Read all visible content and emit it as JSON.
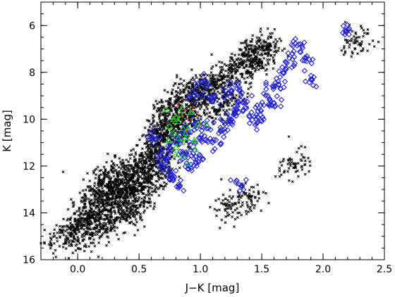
{
  "chart_data": {
    "type": "scatter",
    "title": "",
    "xlabel": "J−K [mag]",
    "ylabel": "K [mag]",
    "xlim": [
      -0.3,
      2.5
    ],
    "ylim": [
      16,
      5
    ],
    "y_inverted": true,
    "grid": false,
    "x_ticks": [
      0.0,
      0.5,
      1.0,
      1.5,
      2.0,
      2.5
    ],
    "x_tick_labels": [
      "0.0",
      "0.5",
      "1.0",
      "1.5",
      "2.0",
      "2.5"
    ],
    "y_ticks": [
      6,
      8,
      10,
      12,
      14,
      16
    ],
    "y_tick_labels": [
      "6",
      "8",
      "10",
      "12",
      "14",
      "16"
    ],
    "series": [
      {
        "marker": "x",
        "color": "#000000",
        "description_points": "dense field population; core centered near (0.3, 13.2), extending to upper right",
        "points": [
          [
            0.05,
            14.5
          ],
          [
            0.1,
            14.2
          ],
          [
            0.12,
            13.6
          ],
          [
            0.15,
            14.8
          ],
          [
            0.18,
            13.1
          ],
          [
            0.2,
            12.6
          ],
          [
            0.22,
            14.1
          ],
          [
            0.25,
            13.4
          ],
          [
            0.27,
            12.9
          ],
          [
            0.3,
            13.2
          ],
          [
            0.3,
            14.4
          ],
          [
            0.32,
            12.3
          ],
          [
            0.35,
            13.7
          ],
          [
            0.37,
            12.8
          ],
          [
            0.4,
            13.0
          ],
          [
            0.42,
            14.0
          ],
          [
            0.45,
            12.5
          ],
          [
            0.47,
            13.5
          ],
          [
            0.5,
            12.1
          ],
          [
            0.52,
            13.0
          ],
          [
            0.55,
            11.8
          ],
          [
            0.57,
            12.6
          ],
          [
            0.6,
            11.4
          ],
          [
            0.62,
            12.2
          ],
          [
            0.65,
            11.0
          ],
          [
            0.68,
            10.6
          ],
          [
            0.7,
            11.9
          ],
          [
            0.72,
            10.2
          ],
          [
            0.75,
            9.8
          ],
          [
            0.78,
            10.9
          ],
          [
            0.8,
            9.5
          ],
          [
            0.82,
            10.3
          ],
          [
            0.85,
            9.2
          ],
          [
            0.88,
            9.9
          ],
          [
            0.9,
            8.8
          ],
          [
            0.95,
            9.4
          ],
          [
            1.0,
            8.6
          ],
          [
            1.05,
            9.1
          ],
          [
            1.1,
            8.4
          ],
          [
            1.15,
            9.6
          ],
          [
            1.2,
            8.2
          ],
          [
            1.25,
            8.9
          ],
          [
            1.3,
            7.9
          ],
          [
            1.35,
            7.6
          ],
          [
            1.4,
            7.3
          ],
          [
            1.45,
            7.0
          ],
          [
            1.5,
            7.2
          ],
          [
            1.55,
            6.9
          ],
          [
            -0.1,
            15.2
          ],
          [
            -0.05,
            14.9
          ],
          [
            0.0,
            14.6
          ],
          [
            1.78,
            11.9
          ],
          [
            2.25,
            6.75
          ],
          [
            1.23,
            13.8
          ],
          [
            1.4,
            13.4
          ]
        ]
      },
      {
        "marker": "diamond",
        "color": "#2020d0",
        "points": [
          [
            0.62,
            10.8
          ],
          [
            0.68,
            11.6
          ],
          [
            0.72,
            12.0
          ],
          [
            0.75,
            11.2
          ],
          [
            0.78,
            12.4
          ],
          [
            0.8,
            11.0
          ],
          [
            0.82,
            12.8
          ],
          [
            0.85,
            11.5
          ],
          [
            0.88,
            10.6
          ],
          [
            0.9,
            12.1
          ],
          [
            0.92,
            11.3
          ],
          [
            0.95,
            10.2
          ],
          [
            0.98,
            11.8
          ],
          [
            1.0,
            10.8
          ],
          [
            1.05,
            10.4
          ],
          [
            1.1,
            11.0
          ],
          [
            1.15,
            10.6
          ],
          [
            1.2,
            10.2
          ],
          [
            1.25,
            10.0
          ],
          [
            1.3,
            9.6
          ],
          [
            1.35,
            9.3
          ],
          [
            1.4,
            9.9
          ],
          [
            1.45,
            9.5
          ],
          [
            1.5,
            10.1
          ],
          [
            1.55,
            9.0
          ],
          [
            1.6,
            8.6
          ],
          [
            1.65,
            8.2
          ],
          [
            1.7,
            7.8
          ],
          [
            1.75,
            7.2
          ],
          [
            1.8,
            6.8
          ],
          [
            1.85,
            7.5
          ],
          [
            1.9,
            8.3
          ],
          [
            1.3,
            8.7
          ],
          [
            1.22,
            8.9
          ],
          [
            1.32,
            12.8
          ],
          [
            1.6,
            9.3
          ],
          [
            2.18,
            6.2
          ],
          [
            1.1,
            9.2
          ],
          [
            0.95,
            9.0
          ],
          [
            1.05,
            8.6
          ]
        ]
      },
      {
        "marker": "triangle",
        "color": "#20d020",
        "points": [
          [
            0.72,
            9.6
          ],
          [
            0.8,
            9.9
          ],
          [
            0.85,
            9.5
          ],
          [
            0.82,
            10.1
          ],
          [
            0.75,
            10.3
          ],
          [
            0.78,
            10.6
          ],
          [
            0.88,
            10.8
          ],
          [
            0.9,
            10.4
          ],
          [
            0.85,
            11.0
          ],
          [
            0.8,
            11.2
          ],
          [
            0.95,
            10.9
          ],
          [
            0.92,
            9.7
          ],
          [
            0.78,
            10.0
          ],
          [
            0.86,
            10.4
          ],
          [
            0.82,
            10.8
          ],
          [
            0.98,
            10.2
          ],
          [
            0.86,
            11.6
          ],
          [
            0.8,
            11.5
          ],
          [
            0.74,
            10.9
          ],
          [
            0.96,
            11.3
          ],
          [
            1.05,
            10.2
          ],
          [
            0.9,
            11.9
          ],
          [
            0.84,
            9.8
          ],
          [
            0.88,
            10.6
          ]
        ]
      },
      {
        "marker": "x",
        "color": "#d02020",
        "points": [
          [
            0.82,
            9.4
          ],
          [
            0.88,
            9.6
          ],
          [
            0.94,
            9.5
          ],
          [
            0.86,
            9.9
          ],
          [
            0.92,
            10.0
          ],
          [
            0.98,
            9.7
          ],
          [
            0.89,
            10.5
          ],
          [
            1.0,
            10.2
          ]
        ]
      }
    ]
  }
}
